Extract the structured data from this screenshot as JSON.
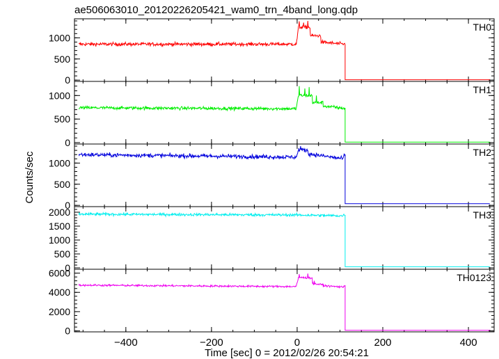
{
  "chart_data": {
    "type": "line",
    "title": "ae506063010_20120226205421_wam0_trn_4band_long.qdp",
    "xlabel": "Time [sec] 0 = 2012/02/26 20:54:21",
    "ylabel": "Counts/sec",
    "xlim": [
      -520,
      460
    ],
    "x_ticks": [
      -400,
      -200,
      0,
      200,
      400
    ],
    "x_step_sec": 1,
    "data_range_x": [
      -510,
      450
    ],
    "drop_time": 112,
    "grid": false,
    "legend": "none",
    "panels": [
      {
        "name": "TH0",
        "color": "#ff0000",
        "ylim": [
          -30,
          1450
        ],
        "yticks": [
          0,
          500,
          1000
        ],
        "baseline": 850,
        "noise": 30,
        "segments": [
          {
            "x": [
              -510,
              -2
            ],
            "y": [
              850,
              850
            ]
          },
          {
            "x": [
              -2,
              2
            ],
            "y": [
              850,
              1150
            ]
          },
          {
            "x": [
              2,
              30
            ],
            "y": [
              1250,
              1250
            ]
          },
          {
            "x": [
              30,
              55
            ],
            "y": [
              1050,
              1050
            ]
          },
          {
            "x": [
              55,
              108
            ],
            "y": [
              900,
              850
            ]
          }
        ],
        "peaks": [
          {
            "x": 5,
            "y": 1390
          },
          {
            "x": 15,
            "y": 1360
          },
          {
            "x": 25,
            "y": 1400
          }
        ],
        "after_drop": 10
      },
      {
        "name": "TH1",
        "color": "#00ee00",
        "ylim": [
          -30,
          1300
        ],
        "yticks": [
          0,
          500,
          1000
        ],
        "baseline": 730,
        "noise": 25,
        "segments": [
          {
            "x": [
              -510,
              -2
            ],
            "y": [
              740,
              720
            ]
          },
          {
            "x": [
              -2,
              2
            ],
            "y": [
              730,
              950
            ]
          },
          {
            "x": [
              2,
              35
            ],
            "y": [
              1000,
              1000
            ]
          },
          {
            "x": [
              35,
              60
            ],
            "y": [
              850,
              850
            ]
          },
          {
            "x": [
              60,
              108
            ],
            "y": [
              780,
              730
            ]
          }
        ],
        "peaks": [
          {
            "x": 5,
            "y": 1200
          },
          {
            "x": 18,
            "y": 1150
          },
          {
            "x": 28,
            "y": 1180
          },
          {
            "x": 45,
            "y": 1000
          }
        ],
        "after_drop": 10
      },
      {
        "name": "TH2",
        "color": "#0000dd",
        "ylim": [
          -30,
          1450
        ],
        "yticks": [
          0,
          500,
          1000
        ],
        "baseline": 1180,
        "noise": 35,
        "segments": [
          {
            "x": [
              -510,
              -2
            ],
            "y": [
              1200,
              1140
            ]
          },
          {
            "x": [
              -2,
              2
            ],
            "y": [
              1150,
              1250
            ]
          },
          {
            "x": [
              2,
              25
            ],
            "y": [
              1320,
              1300
            ]
          },
          {
            "x": [
              25,
              108
            ],
            "y": [
              1220,
              1100
            ]
          }
        ],
        "peaks": [
          {
            "x": 8,
            "y": 1400
          }
        ],
        "after_drop": 40
      },
      {
        "name": "TH3",
        "color": "#00eeee",
        "ylim": [
          -50,
          2200
        ],
        "yticks": [
          0,
          500,
          1000,
          1500,
          2000
        ],
        "baseline": 1920,
        "noise": 35,
        "segments": [
          {
            "x": [
              -510,
              -2
            ],
            "y": [
              1930,
              1900
            ]
          },
          {
            "x": [
              -2,
              108
            ],
            "y": [
              1900,
              1870
            ]
          }
        ],
        "peaks": [],
        "after_drop": 40
      },
      {
        "name": "TH0123",
        "color": "#ee00ee",
        "ylim": [
          -100,
          6400
        ],
        "yticks": [
          0,
          2000,
          4000,
          6000
        ],
        "baseline": 4700,
        "noise": 70,
        "segments": [
          {
            "x": [
              -510,
              -2
            ],
            "y": [
              4750,
              4600
            ]
          },
          {
            "x": [
              -2,
              2
            ],
            "y": [
              4650,
              5300
            ]
          },
          {
            "x": [
              2,
              35
            ],
            "y": [
              5550,
              5500
            ]
          },
          {
            "x": [
              35,
              60
            ],
            "y": [
              4900,
              4800
            ]
          },
          {
            "x": [
              60,
              108
            ],
            "y": [
              4700,
              4550
            ]
          }
        ],
        "peaks": [
          {
            "x": 5,
            "y": 5900
          },
          {
            "x": 25,
            "y": 5950
          },
          {
            "x": 40,
            "y": 5200
          }
        ],
        "after_drop": 60
      }
    ]
  }
}
